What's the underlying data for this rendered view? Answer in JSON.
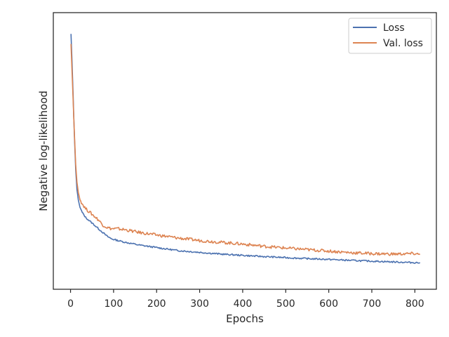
{
  "chart_data": {
    "type": "line",
    "title": "",
    "xlabel": "Epochs",
    "ylabel": "Negative log-likelihood",
    "xlim": [
      -40,
      850
    ],
    "ylim": [
      0,
      1
    ],
    "y_ticks_shown": false,
    "x_ticks": [
      0,
      100,
      200,
      300,
      400,
      500,
      600,
      700,
      800
    ],
    "x_tick_labels": [
      "0",
      "100",
      "200",
      "300",
      "400",
      "500",
      "600",
      "700",
      "800"
    ],
    "grid": false,
    "legend_position": "top-right",
    "series": [
      {
        "name": "Loss",
        "color": "#4c72b0",
        "x": [
          1,
          3,
          6,
          9,
          12,
          15,
          18,
          22,
          27,
          35,
          45,
          55,
          65,
          75,
          85,
          95,
          110,
          130,
          160,
          200,
          250,
          300,
          350,
          400,
          450,
          500,
          550,
          600,
          650,
          700,
          750,
          800,
          812
        ],
        "y": [
          0.96,
          0.87,
          0.72,
          0.55,
          0.42,
          0.34,
          0.3,
          0.27,
          0.25,
          0.23,
          0.215,
          0.2,
          0.185,
          0.17,
          0.155,
          0.145,
          0.138,
          0.13,
          0.12,
          0.11,
          0.098,
          0.091,
          0.084,
          0.079,
          0.074,
          0.07,
          0.066,
          0.063,
          0.059,
          0.056,
          0.053,
          0.05,
          0.05
        ]
      },
      {
        "name": "Val. loss",
        "color": "#dd8452",
        "x": [
          1,
          3,
          6,
          9,
          12,
          15,
          18,
          22,
          27,
          35,
          45,
          55,
          65,
          75,
          85,
          95,
          110,
          130,
          160,
          200,
          250,
          300,
          350,
          400,
          450,
          500,
          550,
          600,
          650,
          700,
          750,
          800,
          812
        ],
        "y": [
          0.92,
          0.83,
          0.7,
          0.56,
          0.44,
          0.37,
          0.33,
          0.3,
          0.285,
          0.265,
          0.25,
          0.235,
          0.22,
          0.2,
          0.19,
          0.185,
          0.185,
          0.18,
          0.17,
          0.16,
          0.148,
          0.138,
          0.131,
          0.124,
          0.115,
          0.108,
          0.102,
          0.096,
          0.09,
          0.086,
          0.084,
          0.086,
          0.082
        ]
      }
    ]
  }
}
